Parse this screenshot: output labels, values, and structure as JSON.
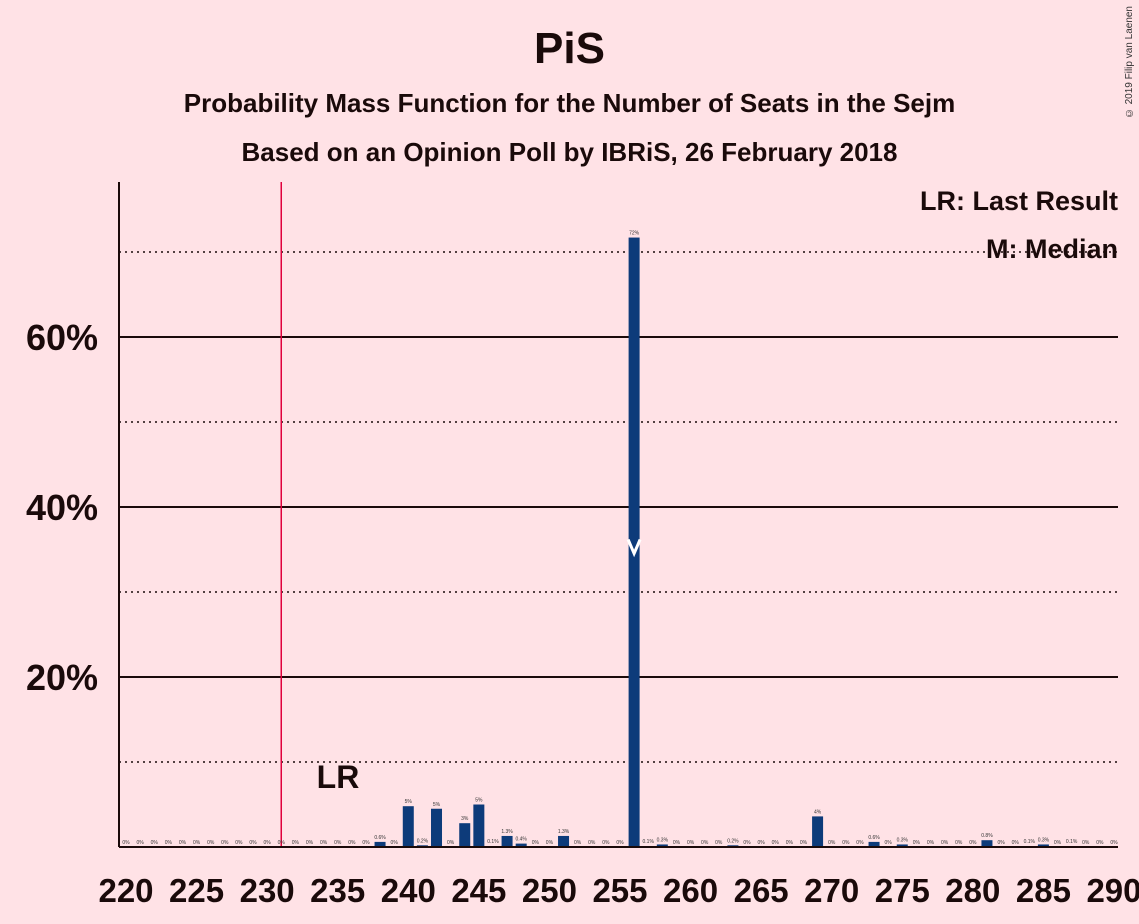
{
  "header": {
    "title": "PiS",
    "subtitle1": "Probability Mass Function for the Number of Seats in the Sejm",
    "subtitle2": "Based on an Opinion Poll by IBRiS, 26 February 2018",
    "copyright": "© 2019 Filip van Laenen"
  },
  "legend": {
    "last_result": "LR: Last Result",
    "median": "M: Median"
  },
  "annotations": {
    "lr_label": "LR",
    "lr_seat": 231,
    "median_seat": 256,
    "median_marker_y": 35
  },
  "colors": {
    "background": "#FFE2E6",
    "bar": "#0D3B7A",
    "last_result_line": "#E0003C",
    "text": "#1a0a0a"
  },
  "chart_data": {
    "type": "bar",
    "xlim": [
      220,
      290
    ],
    "ylim": [
      0,
      78
    ],
    "x_ticks": [
      220,
      225,
      230,
      235,
      240,
      245,
      250,
      255,
      260,
      265,
      270,
      275,
      280,
      285,
      290
    ],
    "y_ticks_solid": [
      20,
      40,
      60
    ],
    "y_tick_labels": [
      "20%",
      "40%",
      "60%"
    ],
    "y_gridlines_dotted": [
      10,
      30,
      50,
      70
    ],
    "grid": true,
    "legend_position": "top-right",
    "bars": [
      {
        "x": 220,
        "value": 0,
        "label": "0%"
      },
      {
        "x": 221,
        "value": 0,
        "label": "0%"
      },
      {
        "x": 222,
        "value": 0,
        "label": "0%"
      },
      {
        "x": 223,
        "value": 0,
        "label": "0%"
      },
      {
        "x": 224,
        "value": 0,
        "label": "0%"
      },
      {
        "x": 225,
        "value": 0,
        "label": "0%"
      },
      {
        "x": 226,
        "value": 0,
        "label": "0%"
      },
      {
        "x": 227,
        "value": 0,
        "label": "0%"
      },
      {
        "x": 228,
        "value": 0,
        "label": "0%"
      },
      {
        "x": 229,
        "value": 0,
        "label": "0%"
      },
      {
        "x": 230,
        "value": 0,
        "label": "0%"
      },
      {
        "x": 231,
        "value": 0,
        "label": "0%"
      },
      {
        "x": 232,
        "value": 0,
        "label": "0%"
      },
      {
        "x": 233,
        "value": 0,
        "label": "0%"
      },
      {
        "x": 234,
        "value": 0,
        "label": "0%"
      },
      {
        "x": 235,
        "value": 0,
        "label": "0%"
      },
      {
        "x": 236,
        "value": 0,
        "label": "0%"
      },
      {
        "x": 237,
        "value": 0,
        "label": "0%"
      },
      {
        "x": 238,
        "value": 0.6,
        "label": "0.6%"
      },
      {
        "x": 239,
        "value": 0,
        "label": "0%"
      },
      {
        "x": 240,
        "value": 4.8,
        "label": "5%"
      },
      {
        "x": 241,
        "value": 0.2,
        "label": "0.2%"
      },
      {
        "x": 242,
        "value": 4.5,
        "label": "5%"
      },
      {
        "x": 243,
        "value": 0,
        "label": "0%"
      },
      {
        "x": 244,
        "value": 2.8,
        "label": "3%"
      },
      {
        "x": 245,
        "value": 5.0,
        "label": "5%"
      },
      {
        "x": 246,
        "value": 0.1,
        "label": "0.1%"
      },
      {
        "x": 247,
        "value": 1.3,
        "label": "1.3%"
      },
      {
        "x": 248,
        "value": 0.4,
        "label": "0.4%"
      },
      {
        "x": 249,
        "value": 0,
        "label": "0%"
      },
      {
        "x": 250,
        "value": 0,
        "label": "0%"
      },
      {
        "x": 251,
        "value": 1.3,
        "label": "1.3%"
      },
      {
        "x": 252,
        "value": 0,
        "label": "0%"
      },
      {
        "x": 253,
        "value": 0,
        "label": "0%"
      },
      {
        "x": 254,
        "value": 0,
        "label": "0%"
      },
      {
        "x": 255,
        "value": 0,
        "label": "0%"
      },
      {
        "x": 256,
        "value": 71.7,
        "label": "72%"
      },
      {
        "x": 257,
        "value": 0.1,
        "label": "0.1%"
      },
      {
        "x": 258,
        "value": 0.3,
        "label": "0.3%"
      },
      {
        "x": 259,
        "value": 0,
        "label": "0%"
      },
      {
        "x": 260,
        "value": 0,
        "label": "0%"
      },
      {
        "x": 261,
        "value": 0,
        "label": "0%"
      },
      {
        "x": 262,
        "value": 0,
        "label": "0%"
      },
      {
        "x": 263,
        "value": 0.2,
        "label": "0.2%"
      },
      {
        "x": 264,
        "value": 0,
        "label": "0%"
      },
      {
        "x": 265,
        "value": 0,
        "label": "0%"
      },
      {
        "x": 266,
        "value": 0,
        "label": "0%"
      },
      {
        "x": 267,
        "value": 0,
        "label": "0%"
      },
      {
        "x": 268,
        "value": 0,
        "label": "0%"
      },
      {
        "x": 269,
        "value": 3.6,
        "label": "4%"
      },
      {
        "x": 270,
        "value": 0,
        "label": "0%"
      },
      {
        "x": 271,
        "value": 0,
        "label": "0%"
      },
      {
        "x": 272,
        "value": 0,
        "label": "0%"
      },
      {
        "x": 273,
        "value": 0.6,
        "label": "0.6%"
      },
      {
        "x": 274,
        "value": 0,
        "label": "0%"
      },
      {
        "x": 275,
        "value": 0.3,
        "label": "0.3%"
      },
      {
        "x": 276,
        "value": 0,
        "label": "0%"
      },
      {
        "x": 277,
        "value": 0,
        "label": "0%"
      },
      {
        "x": 278,
        "value": 0,
        "label": "0%"
      },
      {
        "x": 279,
        "value": 0,
        "label": "0%"
      },
      {
        "x": 280,
        "value": 0,
        "label": "0%"
      },
      {
        "x": 281,
        "value": 0.8,
        "label": "0.8%"
      },
      {
        "x": 282,
        "value": 0,
        "label": "0%"
      },
      {
        "x": 283,
        "value": 0,
        "label": "0%"
      },
      {
        "x": 284,
        "value": 0.1,
        "label": "0.1%"
      },
      {
        "x": 285,
        "value": 0.3,
        "label": "0.3%"
      },
      {
        "x": 286,
        "value": 0,
        "label": "0%"
      },
      {
        "x": 287,
        "value": 0.1,
        "label": "0.1%"
      },
      {
        "x": 288,
        "value": 0,
        "label": "0%"
      },
      {
        "x": 289,
        "value": 0,
        "label": "0%"
      },
      {
        "x": 290,
        "value": 0,
        "label": "0%"
      }
    ]
  }
}
